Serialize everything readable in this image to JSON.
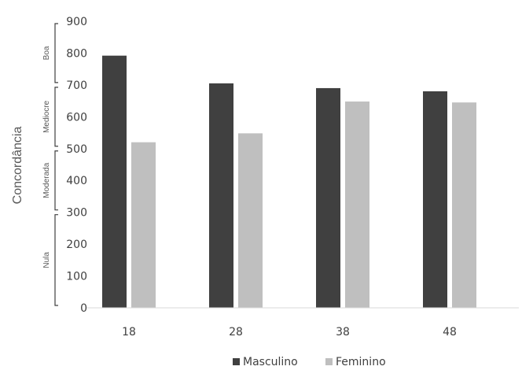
{
  "chart_data": {
    "type": "bar",
    "categories": [
      "18",
      "28",
      "38",
      "48"
    ],
    "series": [
      {
        "name": "Masculino",
        "values": [
          792,
          705,
          690,
          680
        ],
        "color": "#404040"
      },
      {
        "name": "Feminino",
        "values": [
          520,
          548,
          648,
          645
        ],
        "color": "#bfbfbf"
      }
    ],
    "ylabel": "Concordância",
    "ylim": [
      0,
      900
    ],
    "yticks": [
      0,
      100,
      200,
      300,
      400,
      500,
      600,
      700,
      800,
      900
    ],
    "bands": [
      {
        "label": "Nula",
        "from": 0,
        "to": 300
      },
      {
        "label": "Moderada",
        "from": 300,
        "to": 500
      },
      {
        "label": "Mediocre",
        "from": 500,
        "to": 700
      },
      {
        "label": "Boa",
        "from": 700,
        "to": 900
      }
    ],
    "grid": false,
    "legend": "bottom"
  }
}
